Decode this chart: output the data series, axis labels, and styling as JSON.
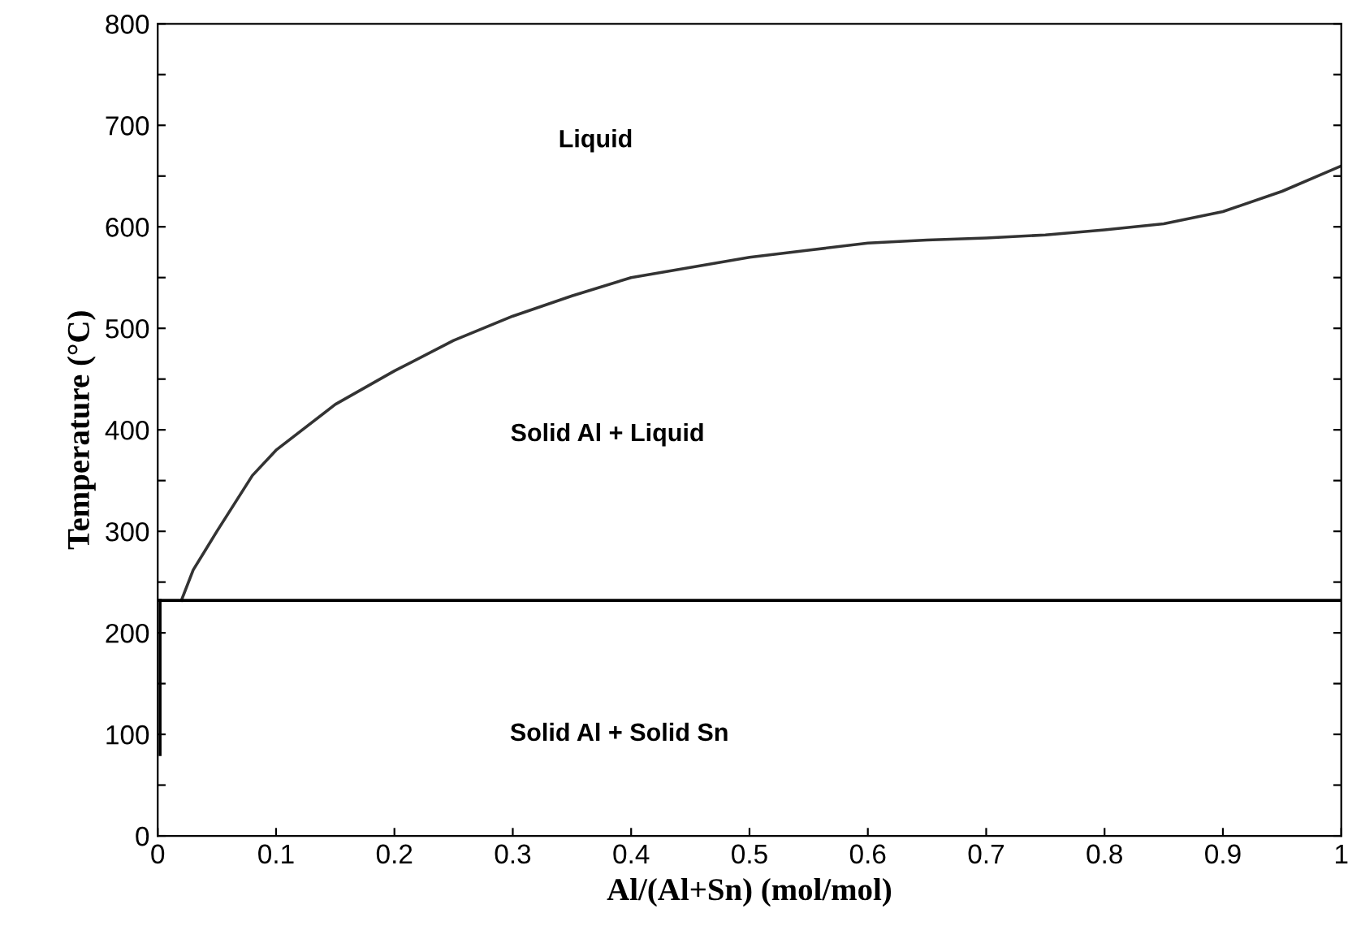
{
  "chart_data": {
    "type": "line",
    "xlabel": "Al/(Al+Sn) (mol/mol)",
    "ylabel": "Temperature (°C)",
    "xlim": [
      0,
      1
    ],
    "ylim": [
      0,
      800
    ],
    "xticks": [
      0,
      0.1,
      0.2,
      0.3,
      0.4,
      0.5,
      0.6,
      0.7,
      0.8,
      0.9,
      1
    ],
    "yticks": [
      0,
      {
        "value": 50,
        "label": null
      },
      100,
      {
        "value": 150,
        "label": null
      },
      200,
      {
        "value": 250,
        "label": null
      },
      300,
      {
        "value": 350,
        "label": null
      },
      400,
      {
        "value": 450,
        "label": null
      },
      500,
      {
        "value": 550,
        "label": null
      },
      600,
      {
        "value": 650,
        "label": null
      },
      700,
      {
        "value": 750,
        "label": null
      },
      800
    ],
    "grid": false,
    "legend": false,
    "marker": "none",
    "line_style": "solid",
    "series": [
      {
        "color": "#333333",
        "x": [
          0.02,
          0.03,
          0.05,
          0.08,
          0.1,
          0.15,
          0.2,
          0.25,
          0.3,
          0.35,
          0.4,
          0.45,
          0.5,
          0.55,
          0.6,
          0.65,
          0.7,
          0.75,
          0.8,
          0.85,
          0.9,
          0.95,
          1.0
        ],
        "values": [
          232,
          262,
          300,
          355,
          380,
          425,
          458,
          488,
          512,
          532,
          550,
          560,
          570,
          577,
          584,
          587,
          589,
          592,
          597,
          603,
          615,
          635,
          660
        ]
      },
      {
        "color": "#000000",
        "x": [
          0.002,
          0.002
        ],
        "values": [
          80,
          232
        ]
      },
      {
        "color": "#000000",
        "x": [
          0,
          1
        ],
        "values": [
          232,
          232
        ]
      }
    ],
    "annotations": [
      "Liquid",
      "Solid Al + Liquid",
      "Solid Al + Solid Sn"
    ]
  }
}
